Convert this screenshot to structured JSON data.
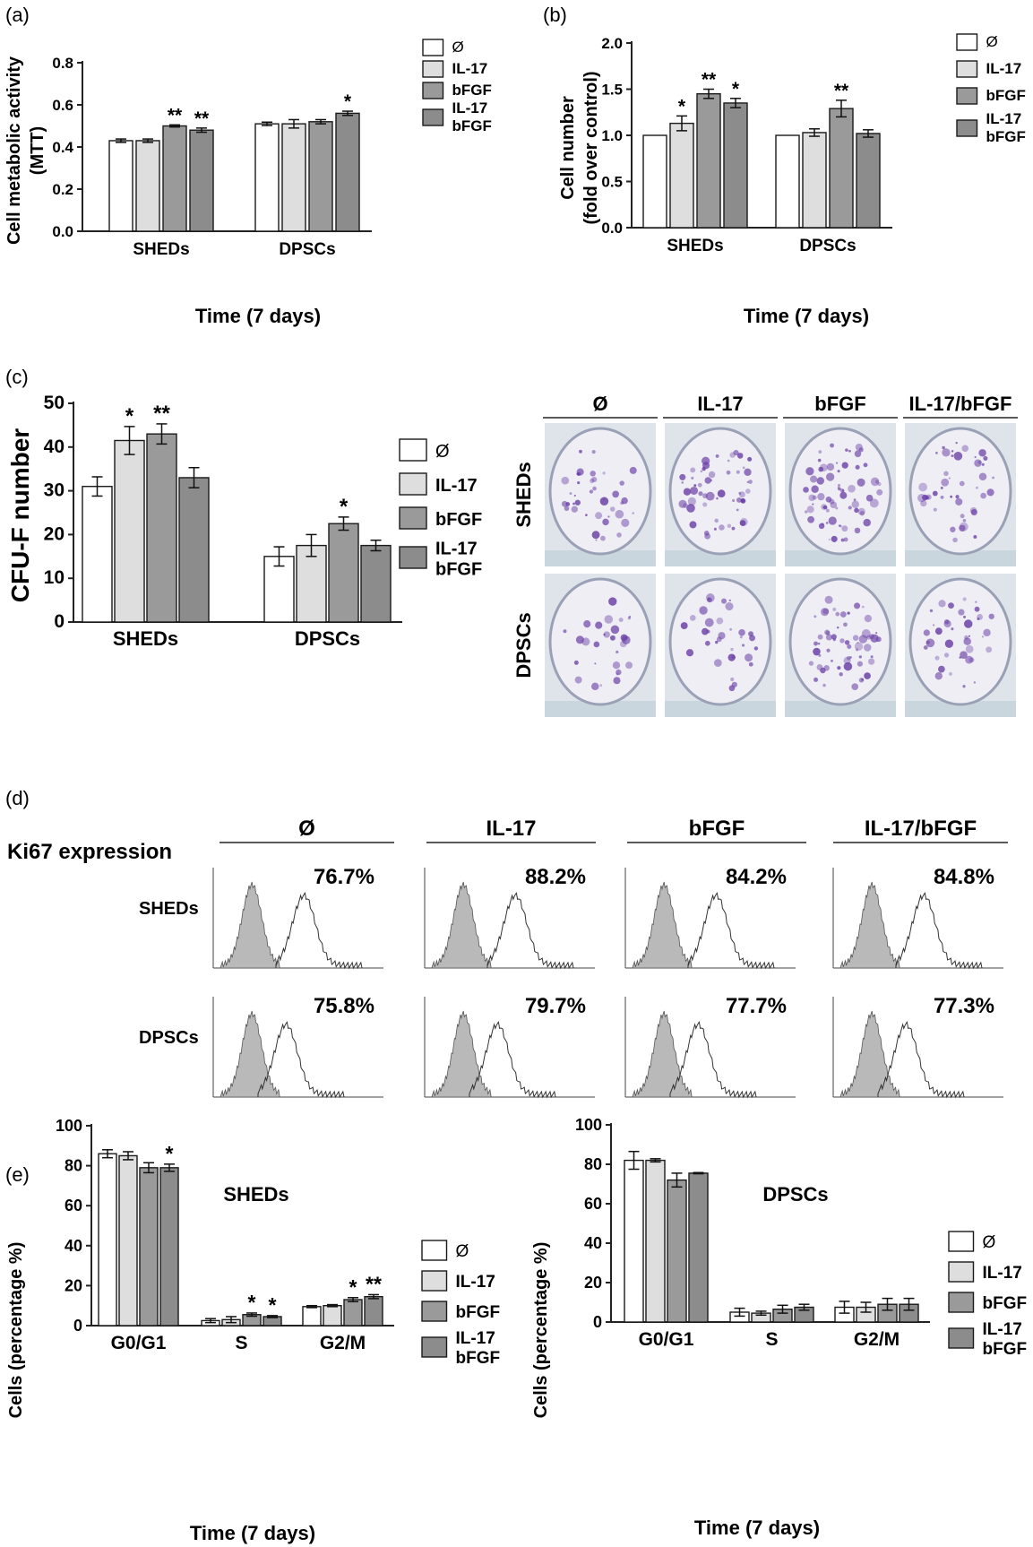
{
  "colors": {
    "ctrl": "#ffffff",
    "il17": "#dedede",
    "bfgf": "#9a9a9a",
    "both": "#8c8c8c",
    "stroke": "#1a1a1a",
    "purple": "#6a3fa6",
    "dish": "#eeeef4",
    "hist_fill": "#b9b9b9"
  },
  "legend_labels": [
    "Ø",
    "IL-17",
    "bFGF",
    "IL-17\nbFGF"
  ],
  "panels": {
    "a": {
      "letter": "(a)",
      "xtitle": "Time (7 days)",
      "ylabel_lines": [
        "Cell metabolic activity",
        "(MTT)"
      ]
    },
    "b": {
      "letter": "(b)",
      "xtitle": "Time (7 days)",
      "ylabel_lines": [
        "Cell number",
        "(fold over control)"
      ]
    },
    "c": {
      "letter": "(c)",
      "ylabel_lines": [
        "CFU-F number"
      ],
      "photo_cols": [
        "Ø",
        "IL-17",
        "bFGF",
        "IL-17/bFGF"
      ],
      "photo_rows": [
        "SHEDs",
        "DPSCs"
      ]
    },
    "d": {
      "letter": "(d)",
      "title": "Ki67 expression",
      "cols": [
        "Ø",
        "IL-17",
        "bFGF",
        "IL-17/bFGF"
      ],
      "rows": [
        "SHEDs",
        "DPSCs"
      ],
      "percents": [
        [
          "76.7%",
          "88.2%",
          "84.2%",
          "84.8%"
        ],
        [
          "75.8%",
          "79.7%",
          "77.7%",
          "77.3%"
        ]
      ]
    },
    "e": {
      "letter": "(e)",
      "left_title": "SHEDs",
      "right_title": "DPSCs",
      "xtitle": "Time (7 days)",
      "ylabel_lines": [
        "Cells  (percentage %)"
      ]
    }
  },
  "chart_data": [
    {
      "id": "a",
      "type": "bar",
      "categories": [
        "SHEDs",
        "DPSCs"
      ],
      "ylim": [
        0,
        0.8
      ],
      "yticks": [
        "0.0",
        "0.2",
        "0.4",
        "0.6",
        "0.8"
      ],
      "series": [
        {
          "name": "Ø",
          "values": [
            0.43,
            0.51
          ],
          "errors": [
            0.008,
            0.008
          ],
          "sig": [
            "",
            ""
          ]
        },
        {
          "name": "IL-17",
          "values": [
            0.43,
            0.51
          ],
          "errors": [
            0.008,
            0.02
          ],
          "sig": [
            "",
            ""
          ]
        },
        {
          "name": "bFGF",
          "values": [
            0.5,
            0.52
          ],
          "errors": [
            0.005,
            0.01
          ],
          "sig": [
            "**",
            ""
          ]
        },
        {
          "name": "IL-17 bFGF",
          "values": [
            0.48,
            0.56
          ],
          "errors": [
            0.01,
            0.01
          ],
          "sig": [
            "**",
            "*"
          ]
        }
      ]
    },
    {
      "id": "b",
      "type": "bar",
      "categories": [
        "SHEDs",
        "DPSCs"
      ],
      "ylim": [
        0,
        2.0
      ],
      "yticks": [
        "0.0",
        "0.5",
        "1.0",
        "1.5",
        "2.0"
      ],
      "series": [
        {
          "name": "Ø",
          "values": [
            1.0,
            1.0
          ],
          "errors": [
            0,
            0
          ],
          "sig": [
            "",
            ""
          ]
        },
        {
          "name": "IL-17",
          "values": [
            1.13,
            1.03
          ],
          "errors": [
            0.08,
            0.04
          ],
          "sig": [
            "*",
            ""
          ]
        },
        {
          "name": "bFGF",
          "values": [
            1.45,
            1.29
          ],
          "errors": [
            0.05,
            0.09
          ],
          "sig": [
            "**",
            "**"
          ]
        },
        {
          "name": "IL-17 bFGF",
          "values": [
            1.35,
            1.02
          ],
          "errors": [
            0.05,
            0.04
          ],
          "sig": [
            "*",
            ""
          ]
        }
      ]
    },
    {
      "id": "c",
      "type": "bar",
      "categories": [
        "SHEDs",
        "DPSCs"
      ],
      "ylim": [
        0,
        50
      ],
      "yticks": [
        "0",
        "10",
        "20",
        "30",
        "40",
        "50"
      ],
      "series": [
        {
          "name": "Ø",
          "values": [
            31,
            15
          ],
          "errors": [
            2.2,
            2.2
          ],
          "sig": [
            "",
            ""
          ]
        },
        {
          "name": "IL-17",
          "values": [
            41.5,
            17.5
          ],
          "errors": [
            3.2,
            2.5
          ],
          "sig": [
            "*",
            ""
          ]
        },
        {
          "name": "bFGF",
          "values": [
            43,
            22.5
          ],
          "errors": [
            2.3,
            1.5
          ],
          "sig": [
            "**",
            "*"
          ]
        },
        {
          "name": "IL-17 bFGF",
          "values": [
            33,
            17.5
          ],
          "errors": [
            2.3,
            1.2
          ],
          "sig": [
            "",
            ""
          ]
        }
      ]
    },
    {
      "id": "e1",
      "type": "bar",
      "categories": [
        "G0/G1",
        "S",
        "G2/M"
      ],
      "ylim": [
        0,
        100
      ],
      "yticks": [
        "0",
        "20",
        "40",
        "60",
        "80",
        "100"
      ],
      "series": [
        {
          "name": "Ø",
          "values": [
            86,
            2.5,
            9.5
          ],
          "errors": [
            2,
            1,
            0.5
          ],
          "sig": [
            "",
            "",
            ""
          ]
        },
        {
          "name": "IL-17",
          "values": [
            85,
            3,
            10
          ],
          "errors": [
            2,
            1.5,
            0.5
          ],
          "sig": [
            "",
            "",
            ""
          ]
        },
        {
          "name": "bFGF",
          "values": [
            79,
            5.5,
            13
          ],
          "errors": [
            2.5,
            0.8,
            1
          ],
          "sig": [
            "",
            "*",
            "*"
          ]
        },
        {
          "name": "IL-17 bFGF",
          "values": [
            79,
            4.5,
            14.5
          ],
          "errors": [
            1.8,
            0.5,
            1
          ],
          "sig": [
            "*",
            "*",
            "**"
          ]
        }
      ]
    },
    {
      "id": "e2",
      "type": "bar",
      "categories": [
        "G0/G1",
        "S",
        "G2/M"
      ],
      "ylim": [
        0,
        100
      ],
      "yticks": [
        "0",
        "20",
        "40",
        "60",
        "80",
        "100"
      ],
      "series": [
        {
          "name": "Ø",
          "values": [
            82,
            5,
            7.5
          ],
          "errors": [
            4.5,
            2,
            3
          ],
          "sig": [
            "",
            "",
            ""
          ]
        },
        {
          "name": "IL-17",
          "values": [
            82,
            4.5,
            7.5
          ],
          "errors": [
            0.8,
            1,
            2.5
          ],
          "sig": [
            "",
            "",
            ""
          ]
        },
        {
          "name": "bFGF",
          "values": [
            72,
            6.5,
            9
          ],
          "errors": [
            3.5,
            2,
            3
          ],
          "sig": [
            "",
            "",
            ""
          ]
        },
        {
          "name": "IL-17 bFGF",
          "values": [
            75.5,
            7.5,
            9
          ],
          "errors": [
            0.3,
            1.5,
            3
          ],
          "sig": [
            "",
            "",
            ""
          ]
        }
      ]
    }
  ]
}
